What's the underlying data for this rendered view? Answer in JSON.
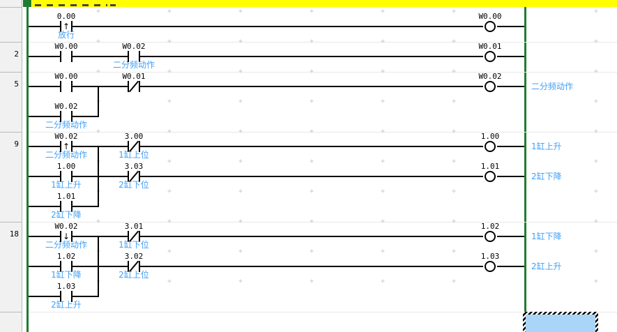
{
  "colors": {
    "bus": "#1e7d2e",
    "section_bar": "#ffff00",
    "comment": "#42a0f5",
    "selection": "#abd5f8",
    "margin_bg": "#f1f1f1",
    "margin_border": "#b9b9b9",
    "separator": "#e8e8e8",
    "grid_mark": "#c6c6c6"
  },
  "grid_mark_glyph": "+",
  "margin_numbers": [
    "",
    "2",
    "5",
    "9",
    "18",
    ""
  ],
  "rungs": [
    {
      "number": "",
      "rows": [
        {
          "elements": [
            {
              "kind": "rising",
              "col": 0,
              "name": "0.00",
              "comment": "放行"
            }
          ],
          "output": {
            "name": "W0.00",
            "comment": ""
          }
        }
      ]
    },
    {
      "number": "2",
      "rows": [
        {
          "elements": [
            {
              "kind": "no",
              "col": 0,
              "name": "W0.00"
            },
            {
              "kind": "no",
              "col": 1,
              "name": "W0.02",
              "comment": "二分频动作"
            }
          ],
          "output": {
            "name": "W0.01",
            "comment": ""
          }
        }
      ]
    },
    {
      "number": "5",
      "rows": [
        {
          "elements": [
            {
              "kind": "no",
              "col": 0,
              "name": "W0.00"
            },
            {
              "kind": "nc",
              "col": 1,
              "name": "W0.01"
            }
          ],
          "output": {
            "name": "W0.02",
            "comment": "二分频动作"
          }
        },
        {
          "branch": true,
          "elements": [
            {
              "kind": "no",
              "col": 0,
              "name": "W0.02",
              "comment": "二分频动作"
            }
          ]
        }
      ]
    },
    {
      "number": "9",
      "rows": [
        {
          "elements": [
            {
              "kind": "rising",
              "col": 0,
              "name": "W0.02",
              "comment": "二分频动作"
            },
            {
              "kind": "nc",
              "col": 1,
              "name": "3.00",
              "comment": "1缸上位"
            }
          ],
          "output": {
            "name": "1.00",
            "comment": "1缸上升"
          }
        },
        {
          "elements": [
            {
              "kind": "no",
              "col": 0,
              "name": "1.00",
              "comment": "1缸上升"
            },
            {
              "kind": "nc",
              "col": 1,
              "name": "3.03",
              "comment": "2缸下位"
            }
          ],
          "output": {
            "name": "1.01",
            "comment": "2缸下降"
          }
        },
        {
          "branch": true,
          "elements": [
            {
              "kind": "no",
              "col": 0,
              "name": "1.01",
              "comment": "2缸下降"
            }
          ]
        }
      ]
    },
    {
      "number": "18",
      "rows": [
        {
          "elements": [
            {
              "kind": "falling",
              "col": 0,
              "name": "W0.02",
              "comment": "二分频动作"
            },
            {
              "kind": "nc",
              "col": 1,
              "name": "3.01",
              "comment": "1缸下位"
            }
          ],
          "output": {
            "name": "1.02",
            "comment": "1缸下降"
          }
        },
        {
          "elements": [
            {
              "kind": "no",
              "col": 0,
              "name": "1.02",
              "comment": "1缸下降"
            },
            {
              "kind": "nc",
              "col": 1,
              "name": "3.02",
              "comment": "2缸上位"
            }
          ],
          "output": {
            "name": "1.03",
            "comment": "2缸上升"
          }
        },
        {
          "branch": true,
          "elements": [
            {
              "kind": "no",
              "col": 0,
              "name": "1.03",
              "comment": "2缸上升"
            }
          ]
        }
      ]
    }
  ]
}
